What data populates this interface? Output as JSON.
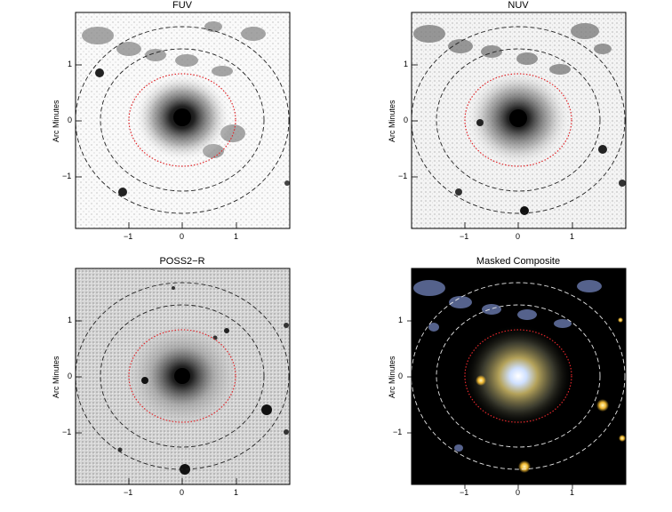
{
  "figure": {
    "panels": [
      {
        "title": "FUV",
        "ylabel": "Arc Minutes",
        "image_style": "grayscale",
        "xticks": [
          "−1",
          "0",
          "1"
        ],
        "yticks": [
          "1",
          "0",
          "−1"
        ]
      },
      {
        "title": "NUV",
        "ylabel": "Arc Minutes",
        "image_style": "grayscale",
        "xticks": [
          "−1",
          "0",
          "1"
        ],
        "yticks": [
          "1",
          "0",
          "−1"
        ]
      },
      {
        "title": "POSS2−R",
        "ylabel": "Arc Minutes",
        "image_style": "grayscale",
        "xticks": [
          "−1",
          "0",
          "1"
        ],
        "yticks": [
          "1",
          "0",
          "−1"
        ]
      },
      {
        "title": "Masked Composite",
        "ylabel": "Arc Minutes",
        "image_style": "color",
        "xticks": [
          "−1",
          "0",
          "1"
        ],
        "yticks": [
          "1",
          "0",
          "−1"
        ]
      }
    ],
    "colors": {
      "inner_ellipse": "#e0262a",
      "outer_ellipses_gray": "#222222",
      "outer_ellipses_color": "#e8e8e8",
      "composite_bg": "#000000"
    }
  }
}
